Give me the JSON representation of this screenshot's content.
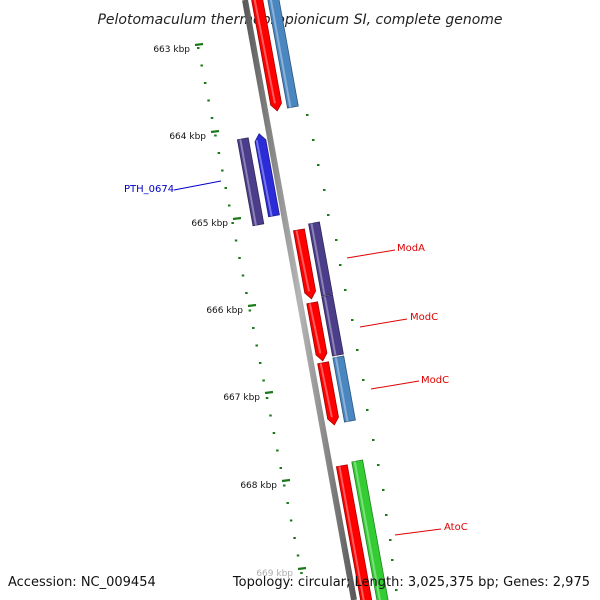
{
  "title": "Pelotomaculum thermopropionicum SI, complete genome",
  "footer": {
    "accession": "Accession: NC_009454",
    "summary": "Topology: circular; Length: 3,025,375 bp; Genes: 2,975"
  },
  "ruler": {
    "tick_color": "#1a7a1a",
    "labels": [
      "663 kbp",
      "664 kbp",
      "665 kbp",
      "666 kbp",
      "667 kbp",
      "668 kbp",
      "669 kbp"
    ]
  },
  "genes": [
    {
      "label": "",
      "strand_lane": "lane1",
      "color": "#ff0000"
    },
    {
      "label": "",
      "strand_lane": "lane2",
      "color": "#4a86c0"
    },
    {
      "label": "PTH_0674",
      "strand_lane": "lane-2",
      "color": "#2b2bd8",
      "label_color": "#0000c8"
    },
    {
      "label": "",
      "strand_lane": "lane-1",
      "color": "#4b3d8a"
    },
    {
      "label": "ModA",
      "strand_lane": "lane2",
      "color": "#4b3d8a",
      "label_color": "#e00000"
    },
    {
      "label": "",
      "strand_lane": "lane1",
      "color": "#ff0000"
    },
    {
      "label": "ModC",
      "strand_lane": "lane2",
      "color": "#4b3d8a",
      "label_color": "#e00000"
    },
    {
      "label": "",
      "strand_lane": "lane1",
      "color": "#ff0000"
    },
    {
      "label": "ModC",
      "strand_lane": "lane2",
      "color": "#4a86c0",
      "label_color": "#e00000"
    },
    {
      "label": "",
      "strand_lane": "lane1",
      "color": "#ff0000"
    },
    {
      "label": "AtoC",
      "strand_lane": "lane2",
      "color": "#33cc33",
      "label_color": "#e00000"
    },
    {
      "label": "",
      "strand_lane": "lane1",
      "color": "#ff0000"
    }
  ]
}
